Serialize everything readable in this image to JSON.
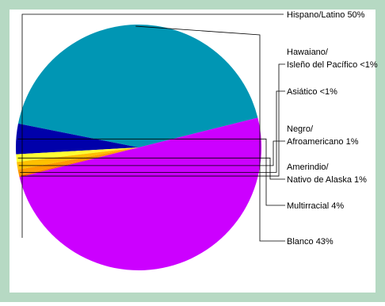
{
  "colors": {
    "border": "#b6d9c3",
    "background": "#ffffff",
    "leader_line": "#000000"
  },
  "chart_data": {
    "type": "pie",
    "title": "",
    "start_angle_deg": 14.0,
    "direction": "counterclockwise",
    "slices": [
      {
        "label_lines": [
          "Blanco 43%"
        ],
        "value": 43,
        "color": "#0096b4"
      },
      {
        "label_lines": [
          "Multirracial 4%"
        ],
        "value": 4,
        "color": "#0000aa"
      },
      {
        "label_lines": [
          "Amerindio/",
          "Nativo de Alaska 1%"
        ],
        "value": 1,
        "color": "#ffff33"
      },
      {
        "label_lines": [
          "Negro/",
          "Afroamericano 1%"
        ],
        "value": 1,
        "color": "#ffc000"
      },
      {
        "label_lines": [
          "Asiático <1%"
        ],
        "value": 0.8,
        "color": "#ff9900"
      },
      {
        "label_lines": [
          "Hawaiano/",
          "Isleño del Pacífico <1%"
        ],
        "value": 0.2,
        "color": "#ff6600"
      },
      {
        "label_lines": [
          "Hispano/Latino 50%"
        ],
        "value": 50,
        "color": "#cc00ff"
      }
    ]
  }
}
